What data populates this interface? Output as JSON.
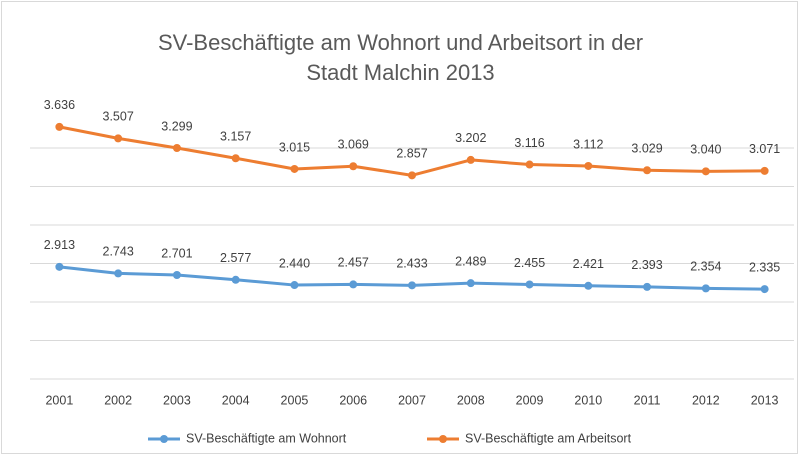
{
  "chart_data": {
    "type": "line",
    "stacked": true,
    "title": "SV-Beschäftigte am Wohnort und Arbeitsort in der Stadt Malchin 2013",
    "categories": [
      "2001",
      "2002",
      "2003",
      "2004",
      "2005",
      "2006",
      "2007",
      "2008",
      "2009",
      "2010",
      "2011",
      "2012",
      "2013"
    ],
    "series": [
      {
        "name": "SV-Beschäftigte am Wohnort",
        "color": "#5b9bd5",
        "values": [
          2913,
          2743,
          2701,
          2577,
          2440,
          2457,
          2433,
          2489,
          2455,
          2421,
          2393,
          2354,
          2335
        ],
        "value_labels": [
          "2.913",
          "2.743",
          "2.701",
          "2.577",
          "2.440",
          "2.457",
          "2.433",
          "2.489",
          "2.455",
          "2.421",
          "2.393",
          "2.354",
          "2.335"
        ]
      },
      {
        "name": "SV-Beschäftigte am Arbeitsort",
        "color": "#ed7d31",
        "values": [
          3636,
          3507,
          3299,
          3157,
          3015,
          3069,
          2857,
          3202,
          3116,
          3112,
          3029,
          3040,
          3071
        ],
        "value_labels": [
          "3.636",
          "3.507",
          "3.299",
          "3.157",
          "3.015",
          "3.069",
          "2.857",
          "3.202",
          "3.116",
          "3.112",
          "3.029",
          "3.040",
          "3.071"
        ]
      }
    ],
    "ylim": [
      0,
      7000
    ],
    "yticks": [
      0,
      1000,
      2000,
      3000,
      4000,
      5000,
      6000
    ],
    "grid": true,
    "legend": "bottom"
  }
}
